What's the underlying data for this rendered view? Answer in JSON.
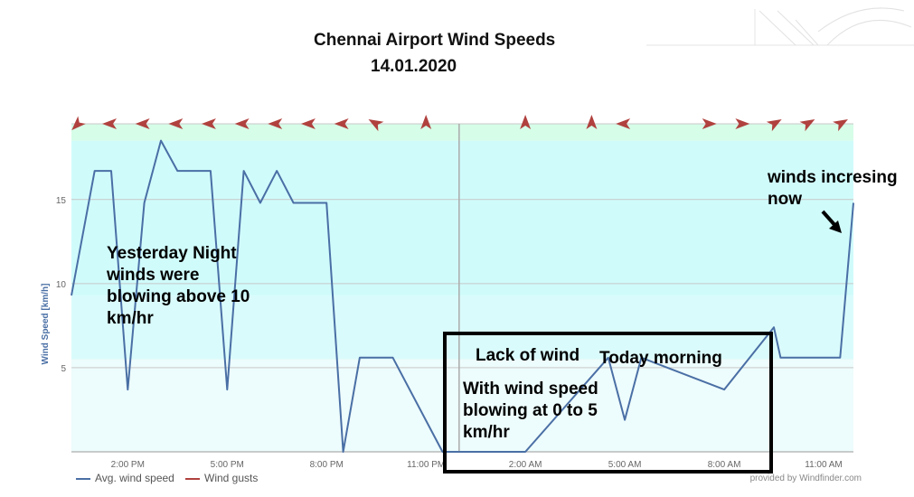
{
  "chart_data": {
    "type": "line",
    "title": "Chennai Airport Wind Speeds",
    "subtitle": "14.01.2020",
    "ylabel": "Wind Speed [km/h]",
    "ylim": [
      0,
      19.5
    ],
    "y_ticks": [
      5,
      10,
      15
    ],
    "x_ticks": [
      "2:00 PM",
      "5:00 PM",
      "8:00 PM",
      "11:00 PM",
      "2:00 AM",
      "5:00 AM",
      "8:00 AM",
      "11:00 AM"
    ],
    "x_tick_hours": [
      2,
      5,
      8,
      11,
      14,
      17,
      20,
      23
    ],
    "xlim_hours": [
      0.3,
      23.9
    ],
    "grid": true,
    "legend_position": "bottom-left",
    "series": [
      {
        "name": "Avg. wind speed",
        "color": "#4a6fa5",
        "x_hours": [
          0.3,
          1.0,
          1.5,
          2.0,
          2.5,
          3.0,
          3.5,
          4.0,
          4.5,
          5.0,
          5.5,
          6.0,
          6.5,
          7.0,
          8.0,
          8.5,
          9.0,
          10.0,
          11.5,
          12.0,
          14.0,
          16.5,
          17.0,
          17.5,
          20.0,
          21.5,
          21.7,
          23.5,
          23.9
        ],
        "values": [
          9.3,
          16.7,
          16.7,
          3.7,
          14.8,
          18.5,
          16.7,
          16.7,
          16.7,
          3.7,
          16.7,
          14.8,
          16.7,
          14.8,
          14.8,
          0,
          5.6,
          5.6,
          0,
          0,
          0,
          5.6,
          1.9,
          5.6,
          3.7,
          7.4,
          5.6,
          5.6,
          14.8
        ]
      },
      {
        "name": "Wind gusts",
        "color": "#b0413e",
        "arrow_x_hours": [
          0.5,
          1.5,
          2.5,
          3.5,
          4.5,
          5.5,
          6.5,
          7.5,
          8.5,
          9.5,
          11.0,
          14.0,
          16.0,
          17.0,
          19.5,
          20.5,
          21.5,
          22.5,
          23.5
        ],
        "arrow_directions_deg": [
          225,
          270,
          270,
          270,
          270,
          270,
          270,
          270,
          270,
          300,
          0,
          0,
          0,
          270,
          90,
          90,
          60,
          60,
          60
        ]
      }
    ],
    "background_bands": [
      {
        "from": 0,
        "to": 5.5,
        "color": "#edfcfc"
      },
      {
        "from": 5.5,
        "to": 9.3,
        "color": "#dafbfb"
      },
      {
        "from": 9.3,
        "to": 18.5,
        "color": "#d0fbfb"
      },
      {
        "from": 18.5,
        "to": 19.5,
        "color": "#d6fde8"
      }
    ],
    "annotations": [
      {
        "id": "yesterday",
        "lines": [
          "Yesterday Night",
          "winds were",
          "blowing above 10",
          "km/hr"
        ]
      },
      {
        "id": "increasing",
        "lines": [
          "winds incresing",
          "now"
        ]
      },
      {
        "id": "lack",
        "lines": [
          "Lack of wind"
        ]
      },
      {
        "id": "today",
        "lines": [
          "Today morning"
        ]
      },
      {
        "id": "speed",
        "lines": [
          "With wind speed",
          "blowing at 0 to 5",
          "km/hr"
        ]
      }
    ]
  },
  "legend": {
    "avg_label": "Avg. wind speed",
    "gust_label": "Wind gusts"
  },
  "credit": "provided by Windfinder.com"
}
